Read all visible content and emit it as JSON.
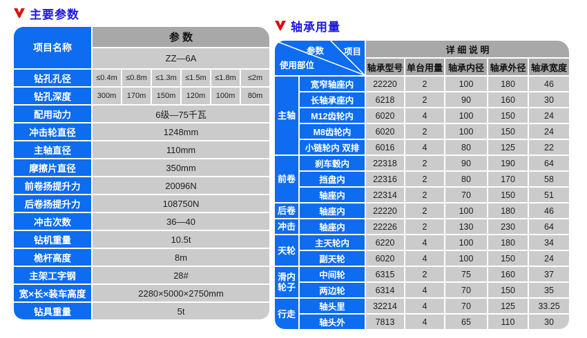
{
  "colors": {
    "cell_blue": "#0d6cf0",
    "header_gray": "#a8a8a8",
    "value_gray": "#cbcbcb",
    "title_blue": "#1c18dd",
    "icon_red": "#dd1010"
  },
  "left_panel": {
    "title": "主要参数",
    "corner_label": "项目名称",
    "param_header": "参  数",
    "model": "ZZ—6A",
    "multi_rows": [
      {
        "label": "钻孔孔径",
        "values": [
          "≤0.4m",
          "≤0.8m",
          "≤1.3m",
          "≤1.5m",
          "≤1.8m",
          "≤2m"
        ]
      },
      {
        "label": "钻孔深度",
        "values": [
          "300m",
          "170m",
          "150m",
          "120m",
          "100m",
          "80m"
        ]
      }
    ],
    "rows": [
      {
        "label": "配用动力",
        "value": "6级—75千瓦"
      },
      {
        "label": "冲击轮直径",
        "value": "1248mm"
      },
      {
        "label": "主轴直径",
        "value": "110mm"
      },
      {
        "label": "摩擦片直径",
        "value": "350mm"
      },
      {
        "label": "前卷扬提升力",
        "value": "20096N"
      },
      {
        "label": "后卷扬提升力",
        "value": "108750N"
      },
      {
        "label": "冲击次数",
        "value": "36—40"
      },
      {
        "label": "钻机重量",
        "value": "10.5t"
      },
      {
        "label": "桅杆高度",
        "value": "8m"
      },
      {
        "label": "主架工字钢",
        "value": "28#"
      },
      {
        "label": "宽×长×装车高度",
        "value": "2280×5000×2750mm"
      },
      {
        "label": "钻具重量",
        "value": "5t"
      }
    ]
  },
  "right_panel": {
    "title": "轴承用量",
    "corner": {
      "param": "参数",
      "item": "项目",
      "usage": "使用部位"
    },
    "detail_header": "详  细  说  明",
    "columns": [
      "轴承型号",
      "单台用量",
      "轴承内径",
      "轴承外径",
      "轴承宽度"
    ],
    "groups": [
      {
        "name": "主轴",
        "rows": [
          {
            "part": "宽窄轴座内",
            "values": [
              "22220",
              "2",
              "100",
              "180",
              "46"
            ]
          },
          {
            "part": "长轴承座内",
            "values": [
              "6218",
              "2",
              "90",
              "160",
              "30"
            ]
          },
          {
            "part": "M12齿轮内",
            "values": [
              "6020",
              "4",
              "100",
              "150",
              "24"
            ]
          },
          {
            "part": "M8齿轮内",
            "values": [
              "6020",
              "2",
              "100",
              "150",
              "24"
            ]
          },
          {
            "part": "小链轮内 双排",
            "values": [
              "6016",
              "4",
              "80",
              "125",
              "22"
            ]
          }
        ]
      },
      {
        "name": "前卷",
        "rows": [
          {
            "part": "刹车毂内",
            "values": [
              "22318",
              "2",
              "90",
              "190",
              "64"
            ]
          },
          {
            "part": "挡盘内",
            "values": [
              "22316",
              "2",
              "80",
              "170",
              "58"
            ]
          },
          {
            "part": "轴座内",
            "values": [
              "22314",
              "2",
              "70",
              "150",
              "51"
            ]
          }
        ]
      },
      {
        "name": "后卷",
        "rows": [
          {
            "part": "轴座内",
            "values": [
              "22220",
              "2",
              "100",
              "180",
              "46"
            ]
          }
        ]
      },
      {
        "name": "冲击",
        "rows": [
          {
            "part": "轴座内",
            "values": [
              "22226",
              "2",
              "130",
              "230",
              "64"
            ]
          }
        ]
      },
      {
        "name": "天轮",
        "rows": [
          {
            "part": "主天轮内",
            "values": [
              "6220",
              "4",
              "100",
              "180",
              "34"
            ]
          },
          {
            "part": "副天轮",
            "values": [
              "6020",
              "4",
              "100",
              "150",
              "24"
            ]
          }
        ]
      },
      {
        "name": "滑内轮子",
        "rows": [
          {
            "part": "中间轮",
            "values": [
              "6315",
              "2",
              "75",
              "160",
              "37"
            ]
          },
          {
            "part": "两边轮",
            "values": [
              "6314",
              "4",
              "70",
              "150",
              "35"
            ]
          }
        ]
      },
      {
        "name": "行走",
        "rows": [
          {
            "part": "轴头里",
            "values": [
              "32214",
              "4",
              "70",
              "125",
              "33.25"
            ]
          },
          {
            "part": "轴头外",
            "values": [
              "7813",
              "4",
              "65",
              "110",
              "30"
            ]
          }
        ]
      }
    ]
  }
}
